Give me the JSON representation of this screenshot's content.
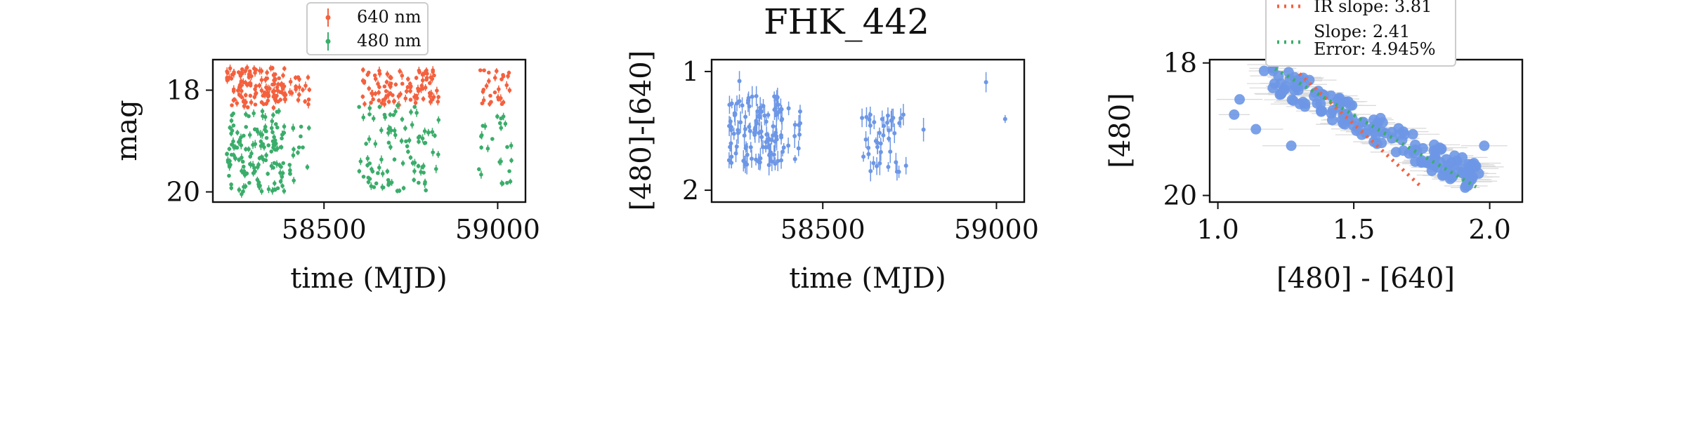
{
  "figure": {
    "title": "FHK_442"
  },
  "colors": {
    "red": "#f4603e",
    "green": "#3aad6a",
    "blue": "#6d97e6",
    "errbar_light": "#d8d8d8"
  },
  "chart_data": [
    {
      "type": "scatter",
      "panel": "lightcurve",
      "xlabel": "time (MJD)",
      "ylabel": "mag",
      "xlim": [
        58180,
        59080
      ],
      "ylim": [
        20.2,
        17.4
      ],
      "y_inverted": true,
      "xticks": [
        58500,
        59000
      ],
      "xtick_labels": [
        "58500",
        "59000"
      ],
      "yticks": [
        18,
        20
      ],
      "ytick_labels": [
        "18",
        "20"
      ],
      "legend": {
        "placement": "above-top-center",
        "entries": [
          "640 nm",
          "480 nm"
        ]
      },
      "series": [
        {
          "name": "640 nm",
          "color_key": "red",
          "clusters": [
            {
              "x_range": [
                58220,
                58390
              ],
              "y_range": [
                17.55,
                18.35
              ],
              "n": 130
            },
            {
              "x_range": [
                58400,
                58460
              ],
              "y_range": [
                17.7,
                18.3
              ],
              "n": 18
            },
            {
              "x_range": [
                58610,
                58830
              ],
              "y_range": [
                17.6,
                18.3
              ],
              "n": 95
            },
            {
              "x_range": [
                58950,
                59040
              ],
              "y_range": [
                17.6,
                18.35
              ],
              "n": 28
            }
          ]
        },
        {
          "name": "480 nm",
          "color_key": "green",
          "clusters": [
            {
              "x_range": [
                58220,
                58390
              ],
              "y_range": [
                18.4,
                20.05
              ],
              "n": 140
            },
            {
              "x_range": [
                58400,
                58460
              ],
              "y_range": [
                18.7,
                19.9
              ],
              "n": 16
            },
            {
              "x_range": [
                58600,
                58830
              ],
              "y_range": [
                18.3,
                20.0
              ],
              "n": 95
            },
            {
              "x_range": [
                58940,
                59040
              ],
              "y_range": [
                18.5,
                19.9
              ],
              "n": 25
            }
          ]
        }
      ]
    },
    {
      "type": "scatter",
      "panel": "color_curve",
      "title": "FHK_442",
      "xlabel": "time (MJD)",
      "ylabel": "[480]-[640]",
      "xlim": [
        58180,
        59080
      ],
      "ylim": [
        2.1,
        0.9
      ],
      "y_inverted": true,
      "xticks": [
        58500,
        59000
      ],
      "xtick_labels": [
        "58500",
        "59000"
      ],
      "yticks": [
        1,
        2
      ],
      "ytick_labels": [
        "1",
        "2"
      ],
      "series": [
        {
          "name": "",
          "color_key": "blue",
          "clusters": [
            {
              "x_range": [
                58230,
                58390
              ],
              "y_range": [
                1.2,
                1.8
              ],
              "n": 110
            },
            {
              "x_range": [
                58400,
                58440
              ],
              "y_range": [
                1.3,
                1.75
              ],
              "n": 10
            },
            {
              "x_range": [
                58600,
                58740
              ],
              "y_range": [
                1.35,
                1.85
              ],
              "n": 40
            }
          ],
          "points": [
            {
              "x": 58260,
              "y": 1.08
            },
            {
              "x": 58790,
              "y": 1.49
            },
            {
              "x": 58970,
              "y": 1.09
            },
            {
              "x": 59025,
              "y": 1.4
            }
          ]
        }
      ]
    },
    {
      "type": "scatter",
      "panel": "color_magnitude",
      "xlabel": "[480] - [640]",
      "ylabel": "[480]",
      "xlim": [
        0.97,
        2.12
      ],
      "ylim": [
        20.1,
        17.95
      ],
      "y_inverted": true,
      "xticks": [
        1.0,
        1.5,
        2.0
      ],
      "xtick_labels": [
        "1.0",
        "1.5",
        "2.0"
      ],
      "yticks": [
        18,
        20
      ],
      "ytick_labels": [
        "18",
        "20"
      ],
      "legend": {
        "placement": "above-top-center",
        "entries": [
          "IR slope: 3.81",
          "Slope: 2.41\nError: 4.945%"
        ]
      },
      "scatter_cloud": {
        "color_key": "blue",
        "trend_x_range": [
          1.2,
          1.95
        ],
        "trend_y_range": [
          18.2,
          19.75
        ],
        "n": 160
      },
      "outliers": [
        {
          "x": 1.08,
          "y": 18.55
        },
        {
          "x": 1.06,
          "y": 18.78
        },
        {
          "x": 1.17,
          "y": 18.12
        },
        {
          "x": 1.14,
          "y": 19.0
        },
        {
          "x": 1.27,
          "y": 19.25
        },
        {
          "x": 1.98,
          "y": 19.25
        },
        {
          "x": 1.96,
          "y": 19.67
        },
        {
          "x": 1.86,
          "y": 19.73
        }
      ],
      "fit_lines": [
        {
          "name": "IR slope: 3.81",
          "color_key": "red",
          "slope": 3.81,
          "x_range": [
            1.3,
            1.75
          ],
          "anchor": [
            1.52,
            19.0
          ]
        },
        {
          "name": "Slope: 2.41",
          "color_key": "green",
          "slope": 2.41,
          "x_range": [
            1.21,
            1.95
          ],
          "anchor": [
            1.58,
            18.98
          ]
        }
      ]
    }
  ]
}
